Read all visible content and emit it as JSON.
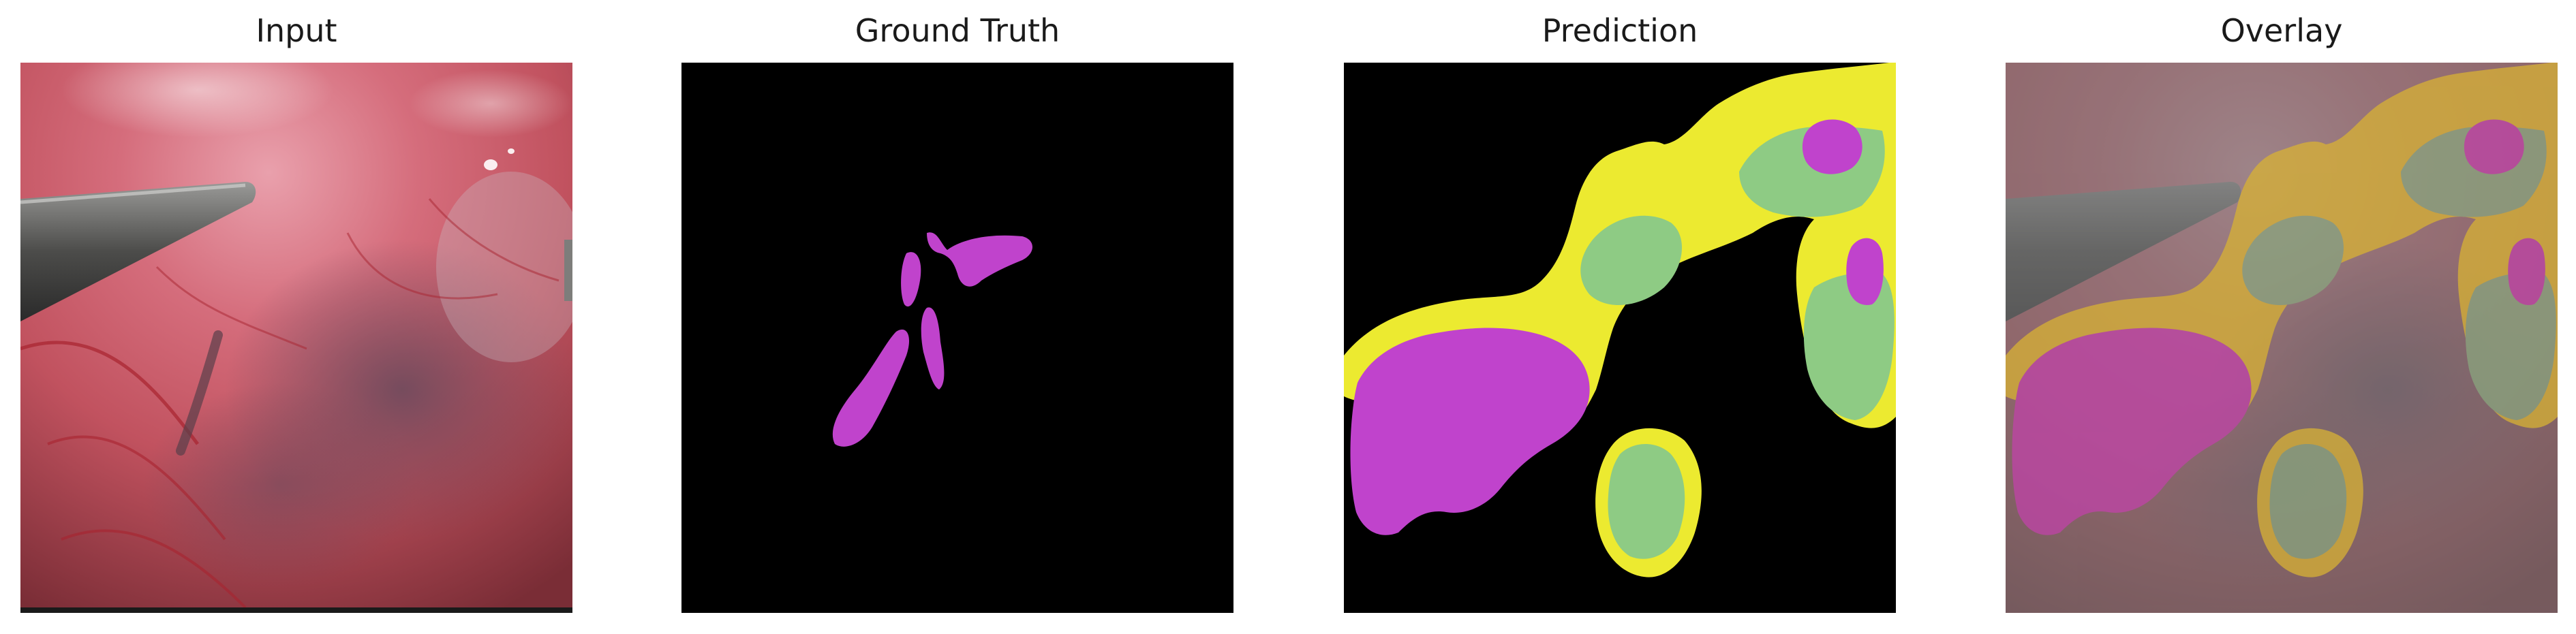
{
  "panels": [
    {
      "id": "input",
      "title": "Input"
    },
    {
      "id": "ground_truth",
      "title": "Ground Truth"
    },
    {
      "id": "prediction",
      "title": "Prediction"
    },
    {
      "id": "overlay",
      "title": "Overlay"
    }
  ],
  "colors": {
    "class_magenta": "#c043cc",
    "class_yellow": "#ecea30",
    "class_green": "#8ecb84",
    "background": "#000000",
    "tissue_red": "#c85563"
  }
}
